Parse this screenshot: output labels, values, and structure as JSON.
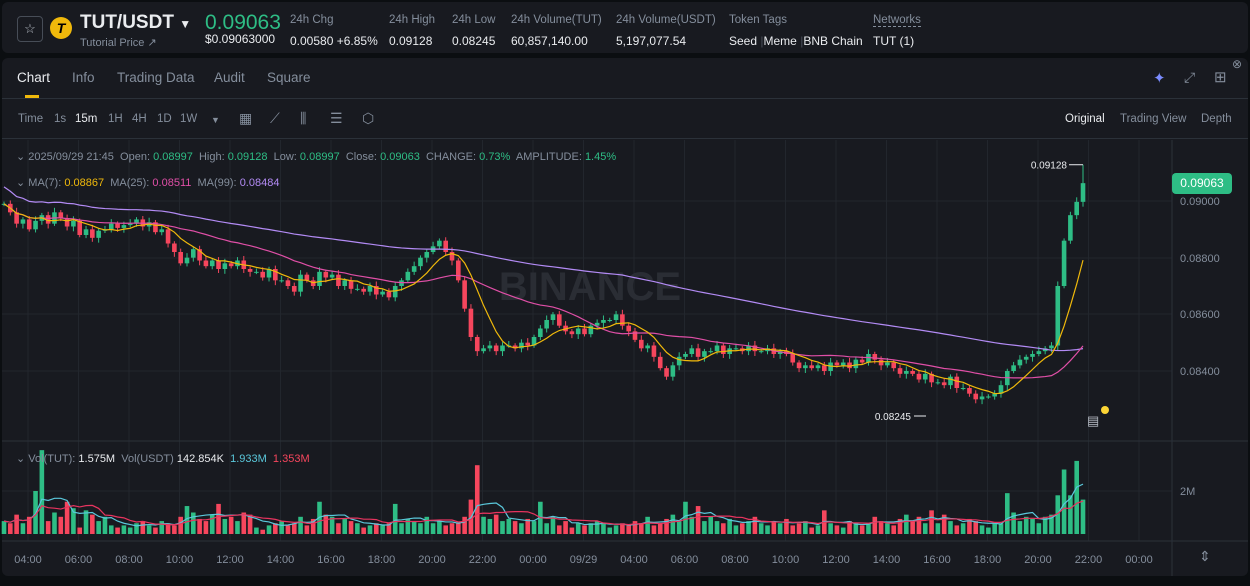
{
  "header": {
    "pair": "TUT/USDT",
    "subtitle": "Tutorial Price ↗",
    "price": "0.09063",
    "price_usd": "$0.09063000",
    "stats": [
      {
        "label": "24h Chg",
        "value": "0.00580 +6.85%",
        "color": "#2ebd85"
      },
      {
        "label": "24h High",
        "value": "0.09128"
      },
      {
        "label": "24h Low",
        "value": "0.08245"
      },
      {
        "label": "24h Volume(TUT)",
        "value": "60,857,140.00"
      },
      {
        "label": "24h Volume(USDT)",
        "value": "5,197,077.54"
      }
    ],
    "token_tags_label": "Token Tags",
    "tags": [
      "Seed",
      "Meme",
      "BNB Chain"
    ],
    "networks_label": "Networks",
    "networks_value": "TUT (1)"
  },
  "tabs": [
    "Chart",
    "Info",
    "Trading Data",
    "Audit",
    "Square"
  ],
  "toolbar": {
    "intervals": [
      "Time",
      "1s",
      "15m",
      "1H",
      "4H",
      "1D",
      "1W"
    ],
    "active": "15m",
    "views": [
      "Original",
      "Trading View",
      "Depth"
    ],
    "active_view": "Original"
  },
  "ohlc": {
    "date": "2025/09/29 21:45",
    "open_l": "Open:",
    "open": "0.08997",
    "high_l": "High:",
    "high": "0.09128",
    "low_l": "Low:",
    "low": "0.08997",
    "close_l": "Close:",
    "close": "0.09063",
    "chg_l": "CHANGE:",
    "chg": "0.73%",
    "amp_l": "AMPLITUDE:",
    "amp": "1.45%"
  },
  "ma": {
    "ma7_l": "MA(7):",
    "ma7": "0.08867",
    "ma25_l": "MA(25):",
    "ma25": "0.08511",
    "ma99_l": "MA(99):",
    "ma99": "0.08484"
  },
  "vol": {
    "tut_l": "Vol(TUT):",
    "tut": "1.575M",
    "usdt_l": "Vol(USDT)",
    "usdt": "142.854K",
    "ma1": "1.933M",
    "ma2": "1.353M"
  },
  "colors": {
    "up": "#2ebd85",
    "down": "#f6465d",
    "ma7": "#f0b90b",
    "ma25": "#e04fa7",
    "ma99": "#b38bf5",
    "vma1": "#5ac8db",
    "vma2": "#e8345f"
  },
  "chart_data": {
    "type": "candlestick",
    "interval": "15m",
    "watermark": "BINANCE",
    "price_ticks": [
      "0.09000",
      "0.08800",
      "0.08600",
      "0.08400"
    ],
    "vol_tick": "2M",
    "time_ticks": [
      "04:00",
      "06:00",
      "08:00",
      "10:00",
      "12:00",
      "14:00",
      "16:00",
      "18:00",
      "20:00",
      "22:00",
      "00:00",
      "09/29",
      "04:00",
      "06:00",
      "08:00",
      "10:00",
      "12:00",
      "14:00",
      "16:00",
      "18:00",
      "20:00",
      "22:00",
      "00:00"
    ],
    "last_price": "0.09063",
    "high_marker": "0.09128",
    "low_marker": "0.08245",
    "close": [
      0.0899,
      0.0896,
      0.0892,
      0.08935,
      0.089,
      0.0893,
      0.0895,
      0.0892,
      0.0896,
      0.0894,
      0.0891,
      0.0893,
      0.0888,
      0.089,
      0.0887,
      0.08895,
      0.089,
      0.0892,
      0.08905,
      0.08915,
      0.0892,
      0.08935,
      0.0891,
      0.08925,
      0.0889,
      0.089,
      0.0885,
      0.0882,
      0.0878,
      0.088,
      0.0883,
      0.0879,
      0.0877,
      0.0879,
      0.0876,
      0.0878,
      0.0877,
      0.0879,
      0.0876,
      0.0875,
      0.0875,
      0.0873,
      0.0876,
      0.0872,
      0.0872,
      0.087,
      0.0868,
      0.0874,
      0.0872,
      0.087,
      0.0875,
      0.0873,
      0.0874,
      0.087,
      0.0872,
      0.0869,
      0.0869,
      0.0868,
      0.087,
      0.0867,
      0.0868,
      0.0866,
      0.087,
      0.0872,
      0.0875,
      0.0877,
      0.088,
      0.0882,
      0.0884,
      0.0886,
      0.0882,
      0.0879,
      0.0872,
      0.0862,
      0.0852,
      0.0847,
      0.0848,
      0.0849,
      0.0847,
      0.0849,
      0.0849,
      0.0848,
      0.085,
      0.0849,
      0.0852,
      0.0855,
      0.0858,
      0.086,
      0.0856,
      0.0854,
      0.0853,
      0.0855,
      0.0853,
      0.0856,
      0.0857,
      0.0858,
      0.0858,
      0.086,
      0.0856,
      0.0854,
      0.0851,
      0.0848,
      0.0849,
      0.0845,
      0.0841,
      0.0838,
      0.0842,
      0.0845,
      0.0846,
      0.0848,
      0.0845,
      0.0847,
      0.0847,
      0.0849,
      0.0846,
      0.0848,
      0.0848,
      0.0847,
      0.0849,
      0.0847,
      0.0847,
      0.0848,
      0.0846,
      0.0847,
      0.0846,
      0.0843,
      0.0841,
      0.0842,
      0.0841,
      0.0842,
      0.084,
      0.0843,
      0.0842,
      0.0843,
      0.0841,
      0.0844,
      0.0843,
      0.0846,
      0.0844,
      0.0842,
      0.0843,
      0.0841,
      0.0839,
      0.084,
      0.0839,
      0.0837,
      0.0839,
      0.0836,
      0.0836,
      0.0835,
      0.0838,
      0.0834,
      0.0834,
      0.0832,
      0.083,
      0.0831,
      0.0831,
      0.0832,
      0.0835,
      0.084,
      0.0842,
      0.0844,
      0.0845,
      0.0846,
      0.0847,
      0.0848,
      0.0849,
      0.087,
      0.0886,
      0.0895,
      0.08997,
      0.09063
    ],
    "volume_m": [
      0.6,
      0.5,
      0.9,
      0.5,
      0.8,
      2.0,
      3.9,
      0.6,
      1.0,
      0.8,
      1.5,
      1.2,
      0.3,
      1.1,
      0.9,
      0.6,
      0.8,
      0.4,
      0.3,
      0.4,
      0.3,
      0.5,
      0.6,
      0.4,
      0.3,
      0.6,
      0.5,
      0.4,
      0.8,
      1.3,
      1.0,
      0.7,
      0.6,
      0.9,
      1.4,
      0.7,
      0.8,
      0.6,
      1.0,
      0.9,
      0.3,
      0.2,
      0.4,
      0.5,
      0.6,
      0.4,
      0.5,
      0.8,
      0.4,
      0.7,
      1.5,
      0.9,
      0.8,
      0.5,
      0.7,
      0.6,
      0.5,
      0.3,
      0.4,
      0.5,
      0.4,
      0.5,
      1.4,
      0.5,
      0.7,
      0.6,
      0.5,
      0.8,
      0.5,
      0.6,
      0.4,
      0.5,
      0.5,
      0.8,
      1.6,
      3.2,
      0.8,
      0.7,
      0.9,
      0.6,
      0.7,
      0.6,
      0.5,
      0.7,
      0.6,
      1.5,
      0.5,
      0.8,
      0.4,
      0.6,
      0.3,
      0.5,
      0.4,
      0.5,
      0.6,
      0.5,
      0.3,
      0.4,
      0.5,
      0.4,
      0.6,
      0.5,
      0.8,
      0.4,
      0.5,
      0.7,
      0.9,
      0.6,
      1.5,
      0.8,
      1.3,
      0.6,
      0.8,
      0.6,
      0.5,
      0.7,
      0.4,
      0.5,
      0.6,
      0.8,
      0.5,
      0.4,
      0.6,
      0.5,
      0.7,
      0.4,
      0.5,
      0.6,
      0.3,
      0.4,
      1.1,
      0.5,
      0.4,
      0.3,
      0.6,
      0.5,
      0.4,
      0.5,
      0.8,
      0.6,
      0.5,
      0.4,
      0.7,
      0.9,
      0.6,
      0.8,
      0.5,
      1.1,
      0.5,
      0.9,
      0.6,
      0.4,
      0.5,
      0.7,
      0.6,
      0.4,
      0.3,
      0.5,
      0.5,
      1.9,
      1.0,
      0.6,
      0.8,
      0.7,
      0.5,
      0.8,
      0.9,
      1.8,
      3.0,
      1.8,
      3.4,
      1.6
    ]
  }
}
